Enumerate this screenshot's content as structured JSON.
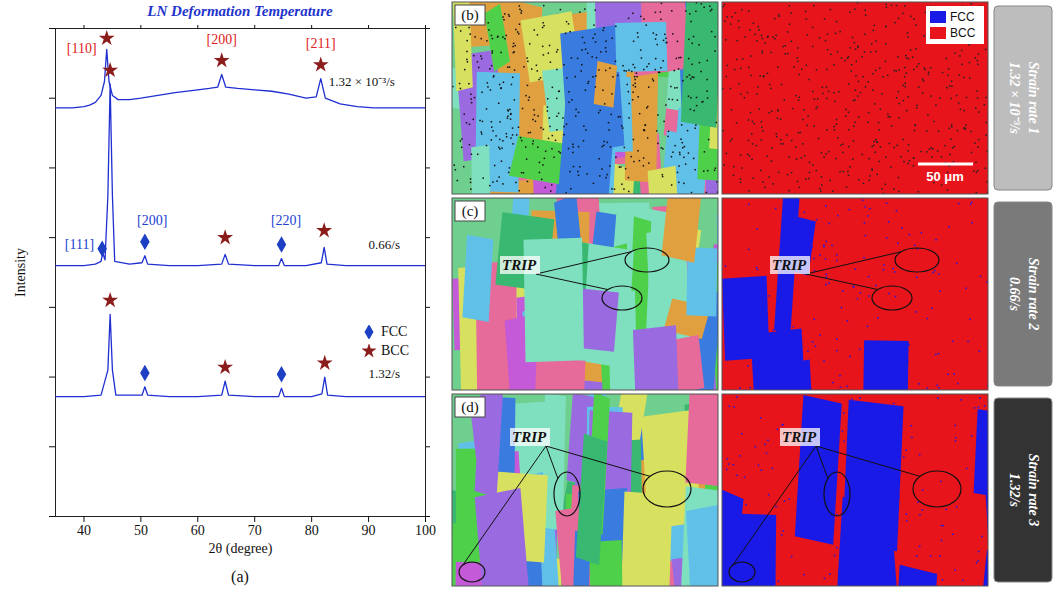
{
  "chart_data": {
    "type": "line",
    "title": "LN Deformation Temperature",
    "x_label": "2θ (degree)",
    "y_label": "Intensity",
    "panel_label": "(a)",
    "xlim": [
      35,
      100
    ],
    "xticks": [
      40,
      50,
      60,
      70,
      80,
      90,
      100
    ],
    "ylim": [
      0,
      3.5
    ],
    "yticks": [
      0,
      0.5,
      1,
      1.5,
      2,
      2.5,
      3,
      3.5
    ],
    "tick_labels": "x",
    "legend": "right",
    "series": [
      {
        "name": "1.32 × 10⁻³/s",
        "color": "#1f2fd0",
        "label_x": 83,
        "label_y": 3.12,
        "x": [
          35,
          38,
          40,
          41,
          42,
          43,
          43.6,
          44.0,
          44.4,
          45,
          46,
          48,
          50,
          53,
          56,
          60,
          62,
          63.5,
          64.2,
          64.9,
          67,
          70,
          73,
          76,
          79,
          80.8,
          81.6,
          82.4,
          85,
          88,
          91,
          95,
          100
        ],
        "values": [
          2.93,
          2.93,
          2.94,
          2.95,
          2.97,
          3.02,
          3.12,
          3.35,
          3.12,
          3.02,
          2.99,
          2.99,
          3.0,
          3.02,
          3.04,
          3.06,
          3.07,
          3.08,
          3.17,
          3.08,
          3.07,
          3.06,
          3.05,
          3.03,
          3.0,
          3.01,
          3.14,
          3.0,
          2.96,
          2.94,
          2.93,
          2.93,
          2.93
        ]
      },
      {
        "name": "0.66/s",
        "color": "#1f2fd0",
        "label_x": 90,
        "label_y": 1.95,
        "x": [
          35,
          40,
          42,
          43.0,
          43.3,
          43.7,
          44.2,
          44.6,
          45.0,
          45.4,
          48,
          50.2,
          50.7,
          51.2,
          55,
          60,
          64.2,
          64.8,
          65.4,
          70,
          74.2,
          74.7,
          75.2,
          79,
          81.7,
          82.2,
          82.7,
          86,
          90,
          95,
          100
        ],
        "values": [
          1.8,
          1.8,
          1.81,
          1.83,
          1.89,
          1.84,
          2.3,
          3.1,
          2.3,
          1.83,
          1.81,
          1.82,
          1.87,
          1.81,
          1.8,
          1.8,
          1.81,
          1.88,
          1.81,
          1.8,
          1.8,
          1.85,
          1.8,
          1.8,
          1.82,
          1.93,
          1.81,
          1.8,
          1.8,
          1.8,
          1.8
        ]
      },
      {
        "name": "1.32/s",
        "color": "#1f2fd0",
        "label_x": 90,
        "label_y": 1.02,
        "x": [
          35,
          40,
          43,
          44.2,
          44.6,
          45.0,
          45.6,
          50.2,
          50.7,
          51.2,
          55,
          60,
          64.2,
          64.8,
          65.4,
          70,
          74.2,
          74.7,
          75.2,
          80,
          81.8,
          82.3,
          82.8,
          86,
          90,
          95,
          100
        ],
        "values": [
          0.86,
          0.86,
          0.87,
          1.05,
          1.45,
          1.05,
          0.87,
          0.87,
          0.93,
          0.87,
          0.86,
          0.86,
          0.87,
          0.97,
          0.87,
          0.86,
          0.86,
          0.92,
          0.86,
          0.86,
          0.88,
          1.0,
          0.87,
          0.86,
          0.86,
          0.86,
          0.86
        ]
      }
    ],
    "phases": [
      {
        "name": "FCC",
        "color": "#1c3fc4",
        "marker": "diamond"
      },
      {
        "name": "BCC",
        "color": "#8b1c1c",
        "marker": "star"
      }
    ],
    "markers": [
      {
        "phase": "BCC",
        "x": 44.0,
        "y": 3.43
      },
      {
        "phase": "BCC",
        "x": 64.2,
        "y": 3.27
      },
      {
        "phase": "BCC",
        "x": 81.6,
        "y": 3.24
      },
      {
        "phase": "BCC",
        "x": 44.6,
        "y": 3.2
      },
      {
        "phase": "BCC",
        "x": 64.8,
        "y": 2.0
      },
      {
        "phase": "BCC",
        "x": 82.2,
        "y": 2.05
      },
      {
        "phase": "FCC",
        "x": 43.2,
        "y": 1.92
      },
      {
        "phase": "FCC",
        "x": 50.7,
        "y": 1.97
      },
      {
        "phase": "FCC",
        "x": 74.7,
        "y": 1.95
      },
      {
        "phase": "BCC",
        "x": 44.6,
        "y": 1.55
      },
      {
        "phase": "BCC",
        "x": 64.8,
        "y": 1.07
      },
      {
        "phase": "BCC",
        "x": 82.3,
        "y": 1.1
      },
      {
        "phase": "FCC",
        "x": 50.7,
        "y": 1.03
      },
      {
        "phase": "FCC",
        "x": 74.7,
        "y": 1.02
      }
    ],
    "annotations": [
      {
        "text": "[110]",
        "x": 39.6,
        "y": 3.36,
        "color": "#e0201c"
      },
      {
        "text": "[200]",
        "x": 64.2,
        "y": 3.42,
        "color": "#e0201c"
      },
      {
        "text": "[211]",
        "x": 81.6,
        "y": 3.39,
        "color": "#e0201c"
      },
      {
        "text": "[111]",
        "x": 39.2,
        "y": 1.95,
        "color": "#2040d0"
      },
      {
        "text": "[200]",
        "x": 52.0,
        "y": 2.12,
        "color": "#2040d0"
      },
      {
        "text": "[220]",
        "x": 75.5,
        "y": 2.12,
        "color": "#2040d0"
      }
    ]
  },
  "micrographs": {
    "panels": [
      {
        "letter": "(b)",
        "strain_rate": "Strain rate 1",
        "rate": "1.32 × 10⁻³/s",
        "phase_legend": [
          {
            "name": "FCC",
            "color": "#1a1ae6"
          },
          {
            "name": "BCC",
            "color": "#e8141b"
          }
        ],
        "scale_bar": "50 μm"
      },
      {
        "letter": "(c)",
        "strain_rate": "Strain rate 2",
        "rate": "0.66/s",
        "annotation": "TRIP"
      },
      {
        "letter": "(d)",
        "strain_rate": "Strain rate 3",
        "rate": "1.32/s",
        "annotation": "TRIP"
      }
    ]
  }
}
